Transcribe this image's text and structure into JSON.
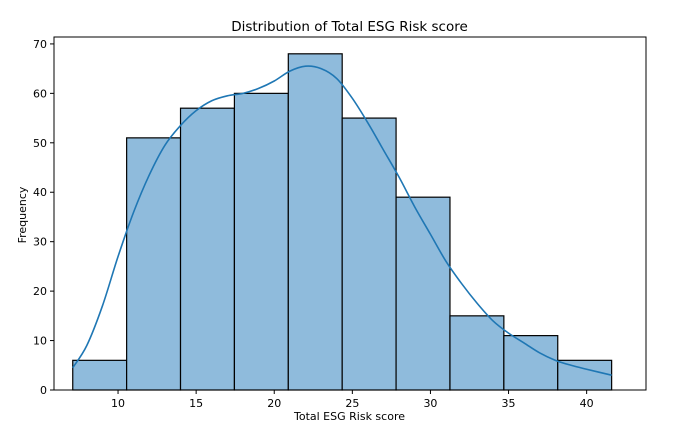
{
  "chart_data": {
    "type": "bar",
    "subtype": "histogram-with-kde",
    "title": "Distribution of Total ESG Risk score",
    "xlabel": "Total ESG Risk score",
    "ylabel": "Frequency",
    "xlim": [
      5.9,
      43.8
    ],
    "ylim": [
      0,
      71.4
    ],
    "xticks": [
      10,
      15,
      20,
      25,
      30,
      35,
      40
    ],
    "yticks": [
      0,
      10,
      20,
      30,
      40,
      50,
      60,
      70
    ],
    "grid": false,
    "legend": "none",
    "bin_edges": [
      7.1,
      10.55,
      14.0,
      17.45,
      20.9,
      24.35,
      27.8,
      31.25,
      34.7,
      38.15,
      41.6
    ],
    "values": [
      6,
      51,
      57,
      60,
      68,
      55,
      39,
      15,
      11,
      6
    ],
    "bar_color": "#8fbbdc",
    "edge_color": "#000000",
    "kde": {
      "color": "#1f77b4",
      "x": [
        7.1,
        8.0,
        9.0,
        10.0,
        11.0,
        12.0,
        13.0,
        14.0,
        15.0,
        16.0,
        17.0,
        18.0,
        19.0,
        20.0,
        21.0,
        22.0,
        23.0,
        24.0,
        25.0,
        26.0,
        27.0,
        28.0,
        29.0,
        30.0,
        31.0,
        32.0,
        33.0,
        34.0,
        35.0,
        36.0,
        37.0,
        38.0,
        39.0,
        40.0,
        41.6
      ],
      "y": [
        4.5,
        9,
        17,
        27,
        36,
        43.5,
        49.5,
        53.5,
        56.5,
        58.5,
        59.5,
        60,
        61,
        62.5,
        64.5,
        65.5,
        65,
        63,
        59,
        54,
        48.5,
        43,
        37,
        31.5,
        26,
        21.5,
        17.5,
        14,
        11.5,
        9.5,
        7.5,
        6,
        5,
        4.2,
        3
      ]
    }
  }
}
